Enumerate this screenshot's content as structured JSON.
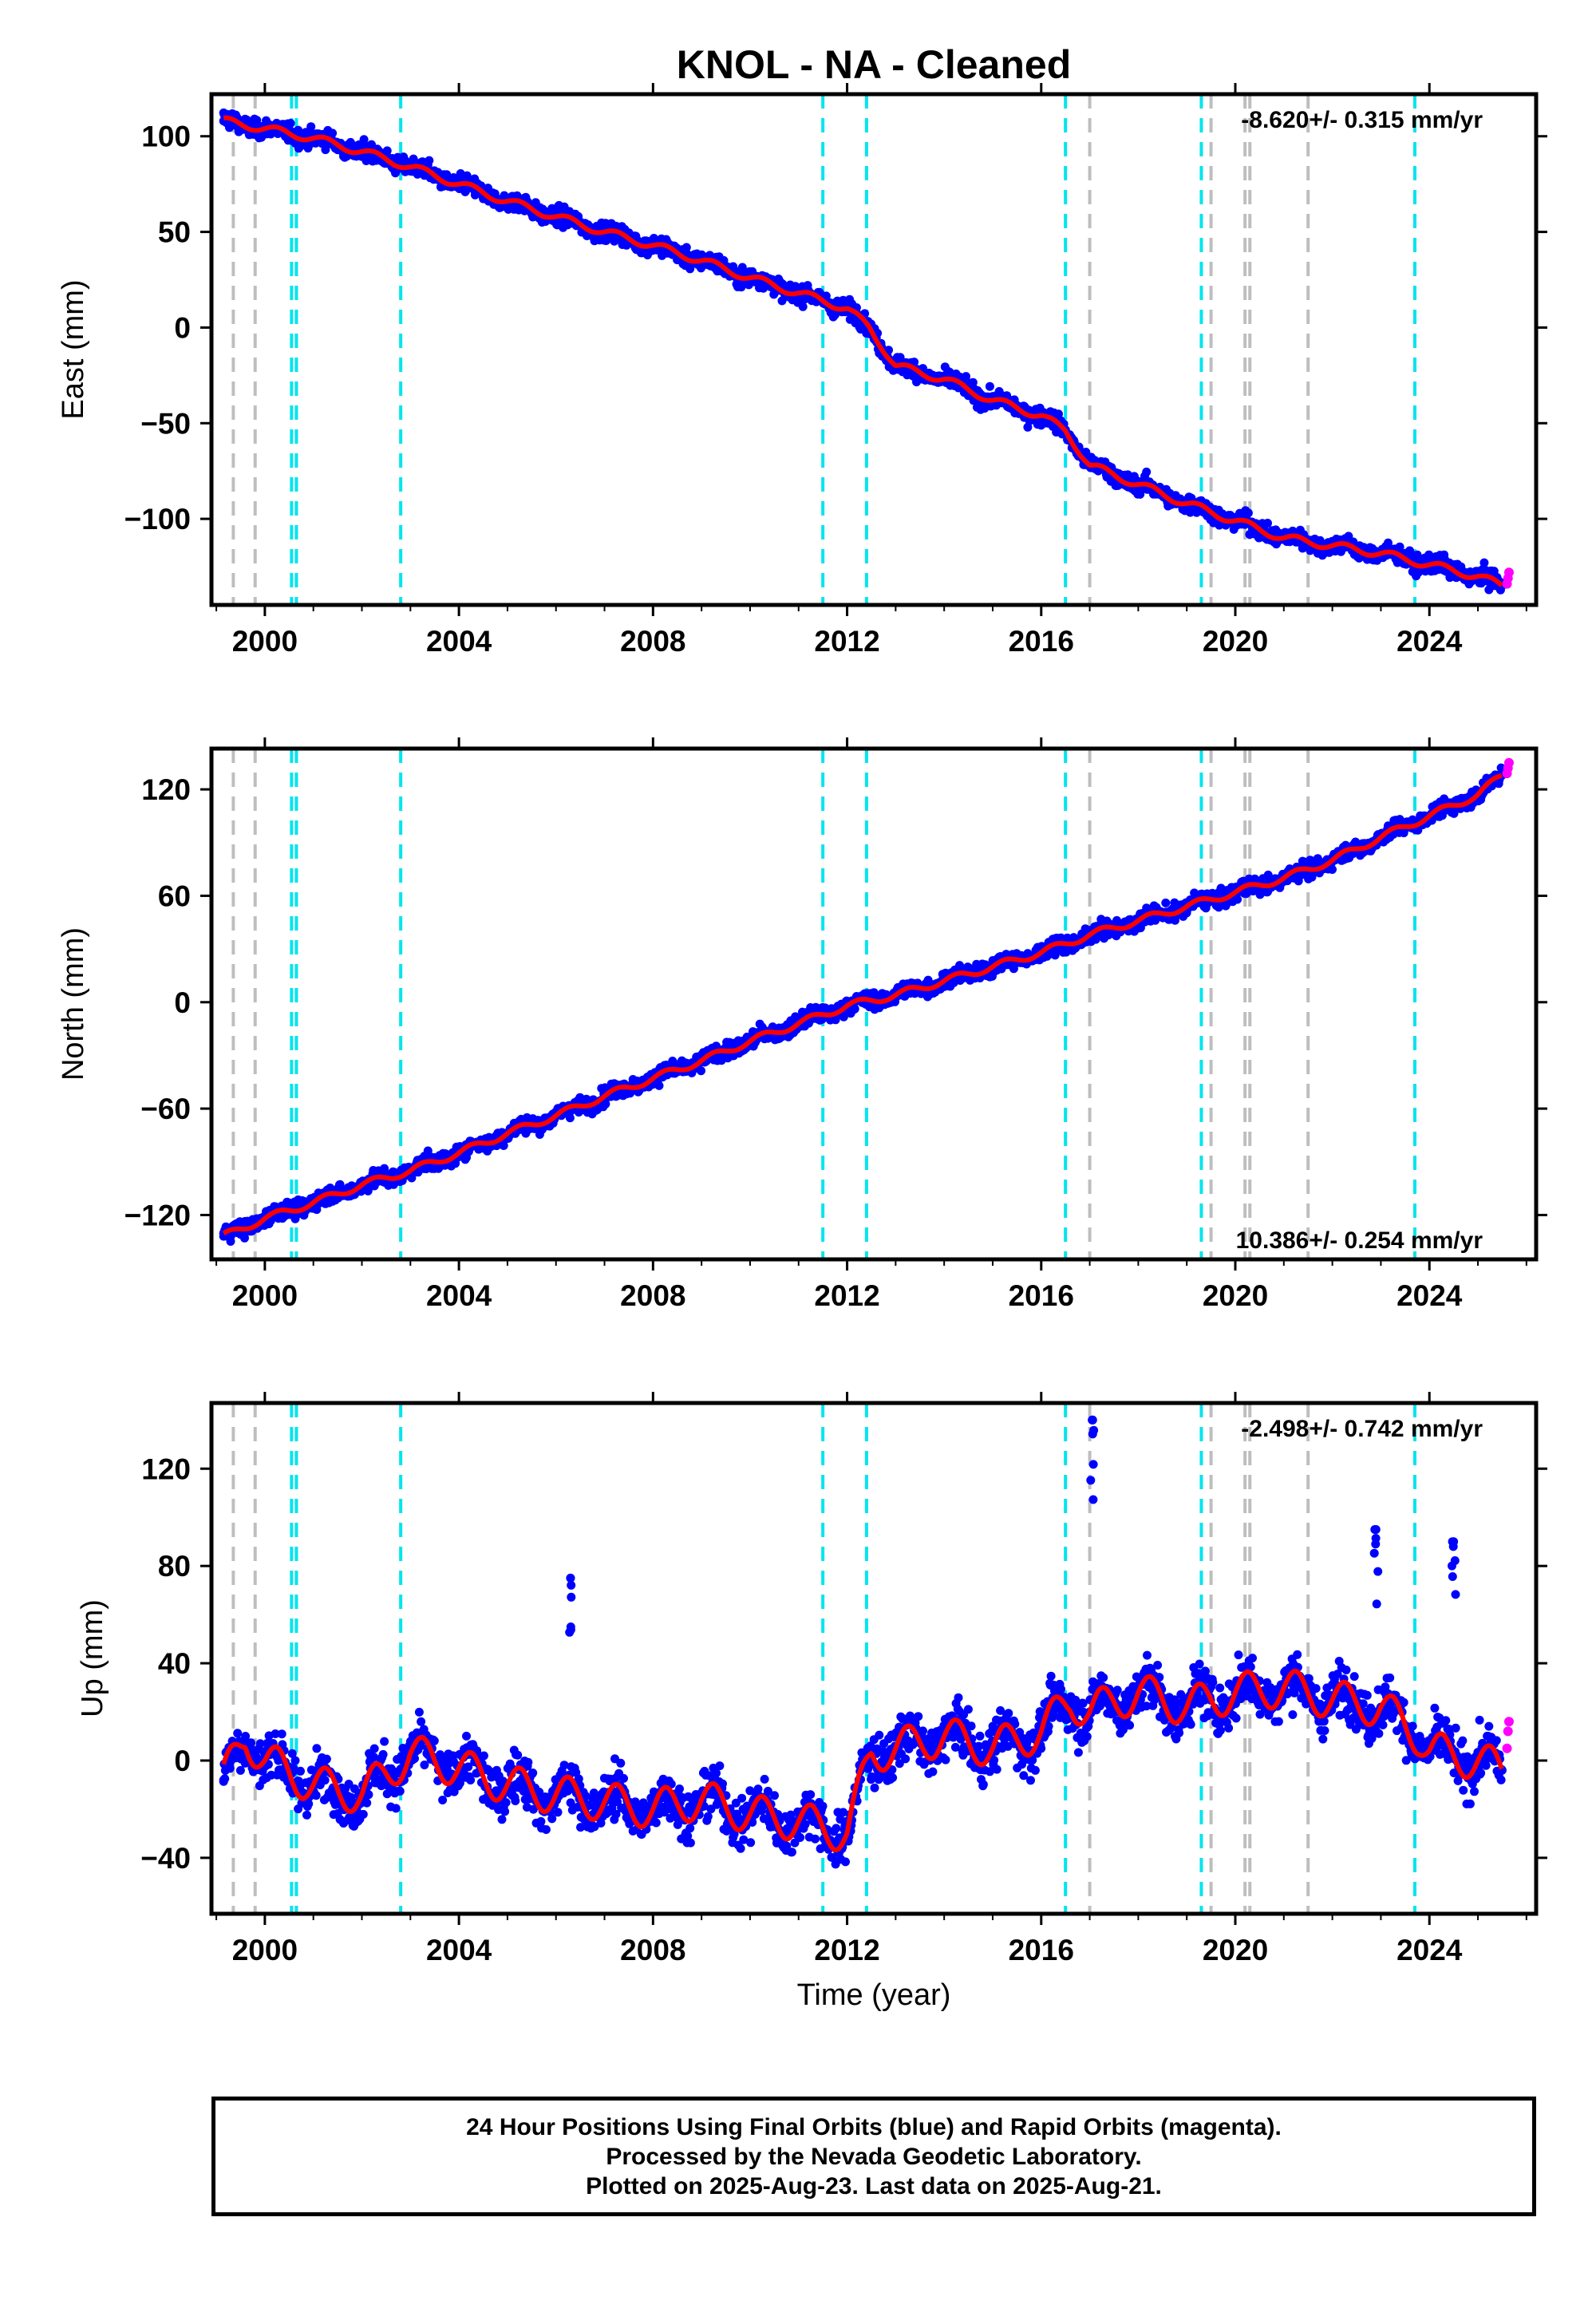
{
  "title": "KNOL  - NA - Cleaned",
  "xlabel": "Time (year)",
  "footer": {
    "line1": "24 Hour Positions Using Final Orbits (blue) and Rapid Orbits (magenta).",
    "line2": "Processed by the Nevada Geodetic Laboratory.",
    "line3": "Plotted on 2025-Aug-23. Last data on 2025-Aug-21."
  },
  "colors": {
    "final_orbits": "#0000ff",
    "rapid_orbits": "#ff00ff",
    "model": "#ff0000",
    "equipment_change": "#00e5ee",
    "earthquake": "#bebebe"
  },
  "chart_data": [
    {
      "type": "scatter",
      "ylabel": "East (mm)",
      "rate_label": "-8.620+/- 0.315 mm/yr",
      "xlim": [
        1998.9,
        2026.2
      ],
      "ylim": [
        -145,
        122
      ],
      "xticks": [
        "2000",
        "2004",
        "2008",
        "2012",
        "2016",
        "2020",
        "2024"
      ],
      "yticks": [
        "100",
        "50",
        "0",
        "−50",
        "−100"
      ],
      "yticks_values": [
        100,
        50,
        0,
        -50,
        -100
      ],
      "series": [
        {
          "name": "Final Orbits (blue)",
          "x": [
            1999.15,
            2000.0,
            2001.0,
            2002.0,
            2003.0,
            2004.0,
            2005.0,
            2006.0,
            2007.0,
            2008.0,
            2009.0,
            2010.0,
            2011.0,
            2012.0,
            2012.45,
            2013.0,
            2014.0,
            2015.0,
            2016.0,
            2016.5,
            2017.0,
            2018.0,
            2019.0,
            2020.0,
            2021.0,
            2022.0,
            2023.0,
            2024.0,
            2025.0,
            2025.5
          ],
          "y": [
            108,
            104,
            99,
            92,
            84,
            75,
            66,
            58,
            50,
            43,
            35,
            26,
            18,
            10,
            0,
            -20,
            -27,
            -38,
            -46,
            -54,
            -72,
            -82,
            -92,
            -101,
            -110,
            -114,
            -118,
            -124,
            -130,
            -135
          ]
        },
        {
          "name": "Rapid Orbits (magenta)",
          "x": [
            2025.6,
            2025.62,
            2025.64
          ],
          "y": [
            -134,
            -131,
            -128
          ]
        }
      ],
      "equipment_changes": [
        2000.55,
        2000.65,
        2002.8,
        2011.5,
        2012.4,
        2016.5,
        2019.3,
        2023.7
      ],
      "earthquakes": [
        1999.35,
        1999.8,
        2017.0,
        2019.5,
        2020.2,
        2020.3,
        2021.5
      ]
    },
    {
      "type": "scatter",
      "ylabel": "North (mm)",
      "rate_label": "10.386+/- 0.254 mm/yr",
      "xlim": [
        1998.9,
        2026.2
      ],
      "ylim": [
        -145,
        143
      ],
      "xticks": [
        "2000",
        "2004",
        "2008",
        "2012",
        "2016",
        "2020",
        "2024"
      ],
      "yticks": [
        "120",
        "60",
        "0",
        "−60",
        "−120"
      ],
      "yticks_values": [
        120,
        60,
        0,
        -60,
        -120
      ],
      "series": [
        {
          "name": "Final Orbits (blue)",
          "x": [
            1999.15,
            2000.0,
            2001.0,
            2002.0,
            2003.0,
            2004.0,
            2005.0,
            2006.0,
            2007.0,
            2008.0,
            2009.0,
            2010.0,
            2011.0,
            2012.0,
            2013.0,
            2014.0,
            2015.0,
            2016.0,
            2017.0,
            2018.0,
            2019.0,
            2020.0,
            2021.0,
            2022.0,
            2023.0,
            2024.0,
            2025.0,
            2025.5
          ],
          "y": [
            -132,
            -122,
            -113,
            -103,
            -95,
            -85,
            -74,
            -64,
            -53,
            -43,
            -33,
            -22,
            -12,
            -2,
            4,
            12,
            20,
            28,
            38,
            46,
            54,
            62,
            70,
            80,
            93,
            105,
            117,
            128
          ]
        },
        {
          "name": "Rapid Orbits (magenta)",
          "x": [
            2025.6,
            2025.62,
            2025.64
          ],
          "y": [
            129,
            132,
            135
          ]
        }
      ],
      "equipment_changes": [
        2000.55,
        2000.65,
        2002.8,
        2011.5,
        2012.4,
        2016.5,
        2019.3,
        2023.7
      ],
      "earthquakes": [
        1999.35,
        1999.8,
        2017.0,
        2019.5,
        2020.2,
        2020.3,
        2021.5
      ]
    },
    {
      "type": "scatter",
      "ylabel": "Up (mm)",
      "rate_label": "-2.498+/- 0.742 mm/yr",
      "xlim": [
        1998.9,
        2026.2
      ],
      "ylim": [
        -63,
        147
      ],
      "xticks": [
        "2000",
        "2004",
        "2008",
        "2012",
        "2016",
        "2020",
        "2024"
      ],
      "yticks": [
        "120",
        "80",
        "40",
        "0",
        "−40"
      ],
      "yticks_values": [
        120,
        80,
        40,
        0,
        -40
      ],
      "series": [
        {
          "name": "Final Orbits (blue)",
          "x": [
            1999.15,
            1999.6,
            2000.0,
            2001.0,
            2002.0,
            2003.0,
            2004.0,
            2005.0,
            2006.0,
            2006.3,
            2007.0,
            2008.0,
            2009.0,
            2010.0,
            2011.0,
            2012.0,
            2012.5,
            2013.0,
            2014.0,
            2015.0,
            2016.0,
            2016.6,
            2017.0,
            2017.05,
            2018.0,
            2019.0,
            2020.0,
            2021.0,
            2022.0,
            2022.9,
            2023.0,
            2023.8,
            2024.0,
            2024.5,
            2025.0,
            2025.5
          ],
          "y": [
            -8,
            10,
            0,
            -10,
            -14,
            3,
            -3,
            -10,
            -14,
            75,
            -17,
            -20,
            -16,
            -22,
            -25,
            -30,
            3,
            5,
            10,
            5,
            12,
            25,
            20,
            140,
            28,
            22,
            28,
            30,
            25,
            95,
            22,
            10,
            4,
            90,
            0,
            -4
          ]
        },
        {
          "name": "Rapid Orbits (magenta)",
          "x": [
            2025.6,
            2025.62,
            2025.64
          ],
          "y": [
            5,
            12,
            16
          ]
        }
      ],
      "equipment_changes": [
        2000.55,
        2000.65,
        2002.8,
        2011.5,
        2012.4,
        2016.5,
        2019.3,
        2023.7
      ],
      "earthquakes": [
        1999.35,
        1999.8,
        2017.0,
        2019.5,
        2020.2,
        2020.3,
        2021.5
      ]
    }
  ]
}
